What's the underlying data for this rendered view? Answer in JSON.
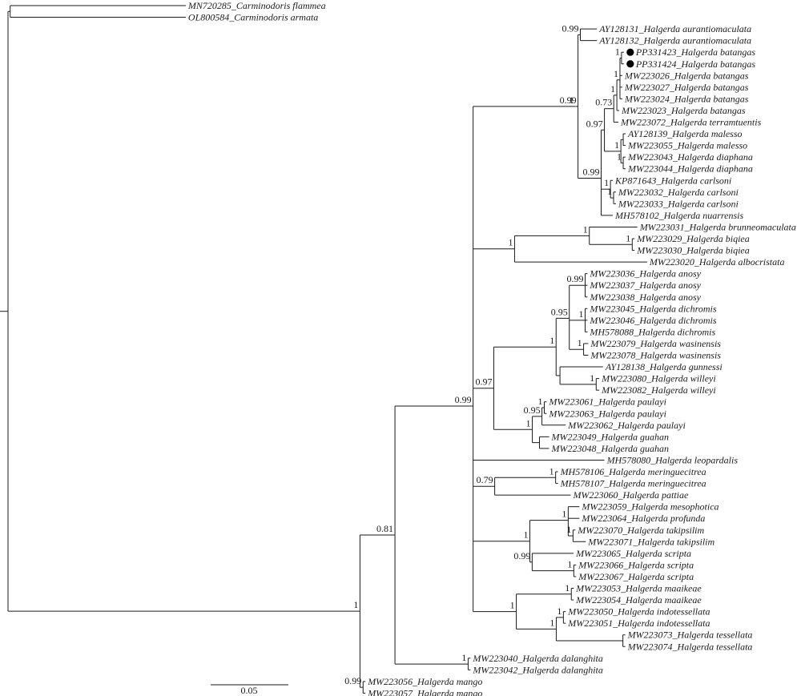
{
  "tree": {
    "scale_bar": {
      "label": "0.05",
      "value": 0.05
    },
    "nodes": [
      {
        "id": "root",
        "parent": null,
        "bl": 0
      },
      {
        "id": "n_carm",
        "parent": "root",
        "bl": 0.0014
      },
      {
        "id": "t1",
        "parent": "n_carm",
        "bl": 0.113,
        "label": "MN720285_Carminodoris flammea"
      },
      {
        "id": "t2",
        "parent": "n_carm",
        "bl": 0.113,
        "label": "OL800584_Carminodoris armata"
      },
      {
        "id": "n_halg",
        "parent": "root",
        "bl": 0.2265,
        "support": "1"
      },
      {
        "id": "n_mango",
        "parent": "n_halg",
        "bl": 0.002,
        "support": "0.99"
      },
      {
        "id": "t57",
        "parent": "n_mango",
        "bl": 0.0015,
        "label": "MW223056_Halgerda mango"
      },
      {
        "id": "t58",
        "parent": "n_mango",
        "bl": 0.0015,
        "label": "MW223057_Halgerda mango"
      },
      {
        "id": "n081",
        "parent": "n_halg",
        "bl": 0.0225,
        "support": "0.81"
      },
      {
        "id": "n_dal",
        "parent": "n081",
        "bl": 0.0471,
        "support": "1"
      },
      {
        "id": "t55",
        "parent": "n_dal",
        "bl": 0.0015,
        "label": "MW223040_Halgerda dalanghita"
      },
      {
        "id": "t56",
        "parent": "n_dal",
        "bl": 0.0015,
        "label": "MW223042_Halgerda dalanghita"
      },
      {
        "id": "n099",
        "parent": "n081",
        "bl": 0.0503,
        "support": "0.99"
      },
      {
        "id": "n1a",
        "parent": "n099",
        "bl": 0.066,
        "support": "1"
      },
      {
        "id": "n099b",
        "parent": "n1a",
        "bl": 0.0015,
        "support": "0.99"
      },
      {
        "id": "n_au",
        "parent": "n099b",
        "bl": 0.0015,
        "support": "0.99"
      },
      {
        "id": "t3",
        "parent": "n_au",
        "bl": 0.0107,
        "label": "AY128131_Halgerda aurantiomaculata"
      },
      {
        "id": "t4",
        "parent": "n_au",
        "bl": 0.0107,
        "label": "AY128132_Halgerda aurantiomaculata"
      },
      {
        "id": "n099c",
        "parent": "n099b",
        "bl": 0.0149,
        "support": "0.99"
      },
      {
        "id": "n097a",
        "parent": "n099c",
        "bl": 0.0021,
        "support": "0.97"
      },
      {
        "id": "n073",
        "parent": "n097a",
        "bl": 0.006,
        "support": "0.73"
      },
      {
        "id": "n_bat",
        "parent": "n073",
        "bl": 0.002,
        "support": "1"
      },
      {
        "id": "n_bat2",
        "parent": "n_bat",
        "bl": 0.002,
        "support": "1"
      },
      {
        "id": "n_pp",
        "parent": "n_bat2",
        "bl": 0.001,
        "support": "1"
      },
      {
        "id": "t5",
        "parent": "n_pp",
        "bl": 0.0015,
        "label": "PP331423_Halgerda batangas",
        "marker": "filled-circle"
      },
      {
        "id": "t6",
        "parent": "n_pp",
        "bl": 0.0015,
        "label": "PP331424_Halgerda batangas",
        "marker": "filled-circle"
      },
      {
        "id": "t7",
        "parent": "n_bat2",
        "bl": 0.0015,
        "label": "MW223026_Halgerda batangas"
      },
      {
        "id": "t8",
        "parent": "n_bat2",
        "bl": 0.0015,
        "label": "MW223027_Halgerda batangas"
      },
      {
        "id": "t9",
        "parent": "n_bat2",
        "bl": 0.0015,
        "label": "MW223024_Halgerda batangas"
      },
      {
        "id": "t10",
        "parent": "n_bat",
        "bl": 0.0015,
        "label": "MW223023_Halgerda batangas"
      },
      {
        "id": "t11",
        "parent": "n073",
        "bl": 0.003,
        "label": "MW223072_Halgerda terramtuentis"
      },
      {
        "id": "n_md",
        "parent": "n097a",
        "bl": 0.0106,
        "support": "1"
      },
      {
        "id": "n_mal",
        "parent": "n_md",
        "bl": 0.0015
      },
      {
        "id": "t12",
        "parent": "n_mal",
        "bl": 0.0015,
        "label": "AY128139_Halgerda malesso"
      },
      {
        "id": "t13",
        "parent": "n_mal",
        "bl": 0.0015,
        "label": "MW223055_Halgerda malesso"
      },
      {
        "id": "n_dia",
        "parent": "n_md",
        "bl": 0.0015,
        "support": "1"
      },
      {
        "id": "t14",
        "parent": "n_dia",
        "bl": 0.0015,
        "label": "MW223043_Halgerda diaphana"
      },
      {
        "id": "t15",
        "parent": "n_dia",
        "bl": 0.0015,
        "label": "MW223044_Halgerda diaphana"
      },
      {
        "id": "n_car",
        "parent": "n099c",
        "bl": 0.006,
        "support": "1"
      },
      {
        "id": "t16",
        "parent": "n_car",
        "bl": 0.0015,
        "label": "KP871643_Halgerda carlsoni"
      },
      {
        "id": "n_car2",
        "parent": "n_car",
        "bl": 0.002,
        "support": "1"
      },
      {
        "id": "t17",
        "parent": "n_car2",
        "bl": 0.0015,
        "label": "MW223032_Halgerda carlsoni"
      },
      {
        "id": "t18",
        "parent": "n_car2",
        "bl": 0.0015,
        "label": "MW223033_Halgerda carlsoni"
      },
      {
        "id": "t19",
        "parent": "n099c",
        "bl": 0.0075,
        "label": "MH578102_Halgerda nuarrensis"
      },
      {
        "id": "n1b",
        "parent": "n099",
        "bl": 0.0267,
        "support": "1"
      },
      {
        "id": "n1c",
        "parent": "n1b",
        "bl": 0.0481,
        "support": "1"
      },
      {
        "id": "t20",
        "parent": "n1c",
        "bl": 0.0309,
        "label": "MW223031_Halgerda brunneomaculata"
      },
      {
        "id": "n_biq",
        "parent": "n1c",
        "bl": 0.0276,
        "support": "1"
      },
      {
        "id": "t21",
        "parent": "n_biq",
        "bl": 0.0015,
        "label": "MW223029_Halgerda biqiea"
      },
      {
        "id": "t22",
        "parent": "n_biq",
        "bl": 0.0015,
        "label": "MW223030_Halgerda biqiea"
      },
      {
        "id": "t23",
        "parent": "n1b",
        "bl": 0.0853,
        "label": "MW223020_Halgerda albocristata"
      },
      {
        "id": "n097b",
        "parent": "n099",
        "bl": 0.0133,
        "support": "0.97"
      },
      {
        "id": "n1d",
        "parent": "n097b",
        "bl": 0.0401,
        "support": "1"
      },
      {
        "id": "n095a",
        "parent": "n1d",
        "bl": 0.0085,
        "support": "0.95"
      },
      {
        "id": "n099d",
        "parent": "n095a",
        "bl": 0.0102,
        "support": "0.99"
      },
      {
        "id": "t24",
        "parent": "n099d",
        "bl": 0.0015,
        "label": "MW223036_Halgerda anosy"
      },
      {
        "id": "t25",
        "parent": "n099d",
        "bl": 0.0015,
        "label": "MW223037_Halgerda anosy"
      },
      {
        "id": "t26",
        "parent": "n099d",
        "bl": 0.0015,
        "label": "MW223038_Halgerda anosy"
      },
      {
        "id": "n_dic",
        "parent": "n095a",
        "bl": 0.0102,
        "support": "1"
      },
      {
        "id": "t27",
        "parent": "n_dic",
        "bl": 0.0015,
        "label": "MW223045_Halgerda dichromis"
      },
      {
        "id": "t28",
        "parent": "n_dic",
        "bl": 0.0015,
        "label": "MW223046_Halgerda dichromis"
      },
      {
        "id": "t29",
        "parent": "n_dic",
        "bl": 0.0015,
        "label": "MH578088_Halgerda dichromis"
      },
      {
        "id": "n_was",
        "parent": "n095a",
        "bl": 0.0092,
        "support": "1"
      },
      {
        "id": "t30",
        "parent": "n_was",
        "bl": 0.003,
        "label": "MW223079_Halgerda wasinensis"
      },
      {
        "id": "t31",
        "parent": "n_was",
        "bl": 0.003,
        "label": "MW223078_Halgerda wasinensis"
      },
      {
        "id": "n_gw",
        "parent": "n1d",
        "bl": 0.0025
      },
      {
        "id": "t32",
        "parent": "n_gw",
        "bl": 0.0277,
        "label": "AY128138_Halgerda gunnessi"
      },
      {
        "id": "n_wil",
        "parent": "n_gw",
        "bl": 0.0233,
        "support": "1"
      },
      {
        "id": "t33",
        "parent": "n_wil",
        "bl": 0.002,
        "label": "MW223080_Halgerda willeyi"
      },
      {
        "id": "t34",
        "parent": "n_wil",
        "bl": 0.002,
        "label": "MW223082_Halgerda willeyi"
      },
      {
        "id": "n1e",
        "parent": "n097b",
        "bl": 0.0248,
        "support": "1"
      },
      {
        "id": "n095b",
        "parent": "n1e",
        "bl": 0.0062,
        "support": "0.95"
      },
      {
        "id": "n_pau",
        "parent": "n095b",
        "bl": 0.0015,
        "support": "1"
      },
      {
        "id": "t35",
        "parent": "n_pau",
        "bl": 0.0015,
        "label": "MW223061_Halgerda paulayi"
      },
      {
        "id": "t36",
        "parent": "n_pau",
        "bl": 0.0015,
        "label": "MW223063_Halgerda paulayi"
      },
      {
        "id": "t37",
        "parent": "n095b",
        "bl": 0.0153,
        "label": "MW223062_Halgerda paulayi"
      },
      {
        "id": "n_gua",
        "parent": "n1e",
        "bl": 0.0046
      },
      {
        "id": "t38",
        "parent": "n_gua",
        "bl": 0.0062,
        "label": "MW223049_Halgerda guahan"
      },
      {
        "id": "t39",
        "parent": "n_gua",
        "bl": 0.0062,
        "label": "MW223048_Halgerda guahan"
      },
      {
        "id": "t40",
        "parent": "n099",
        "bl": 0.0845,
        "label": "MH578080_Halgerda leopardalis"
      },
      {
        "id": "n079",
        "parent": "n099",
        "bl": 0.0139,
        "support": "0.79"
      },
      {
        "id": "n_mer",
        "parent": "n079",
        "bl": 0.0392,
        "support": "1"
      },
      {
        "id": "t41",
        "parent": "n_mer",
        "bl": 0.0015,
        "label": "MH578106_Halgerda meringuecitrea"
      },
      {
        "id": "t42",
        "parent": "n_mer",
        "bl": 0.0015,
        "label": "MH578107_Halgerda meringuecitrea"
      },
      {
        "id": "t43",
        "parent": "n079",
        "bl": 0.0489,
        "label": "MW223060_Halgerda pattiae"
      },
      {
        "id": "n1f",
        "parent": "n099",
        "bl": 0.0365,
        "support": "1"
      },
      {
        "id": "n_mp",
        "parent": "n1f",
        "bl": 0.0247,
        "support": "1"
      },
      {
        "id": "t44",
        "parent": "n_mp",
        "bl": 0.0072,
        "label": "MW223059_Halgerda mesophotica"
      },
      {
        "id": "t45",
        "parent": "n_mp",
        "bl": 0.0072,
        "label": "MW223064_Halgerda profunda"
      },
      {
        "id": "n_tak",
        "parent": "n_mp",
        "bl": 0.0031,
        "support": "1"
      },
      {
        "id": "t46",
        "parent": "n_tak",
        "bl": 0.0015,
        "label": "MW223070_Halgerda takipsilim"
      },
      {
        "id": "t47",
        "parent": "n_tak",
        "bl": 0.0082,
        "label": "MW223071_Halgerda takipsilim"
      },
      {
        "id": "n099e",
        "parent": "n1f",
        "bl": 0.0015,
        "support": "0.99"
      },
      {
        "id": "t48",
        "parent": "n099e",
        "bl": 0.0267,
        "label": "MW223065_Halgerda scripta"
      },
      {
        "id": "n_scr",
        "parent": "n099e",
        "bl": 0.0268,
        "support": "1"
      },
      {
        "id": "t49",
        "parent": "n_scr",
        "bl": 0.0015,
        "label": "MW223066_Halgerda scripta"
      },
      {
        "id": "t50",
        "parent": "n_scr",
        "bl": 0.0015,
        "label": "MW223067_Halgerda scripta"
      },
      {
        "id": "n1g",
        "parent": "n099",
        "bl": 0.0278,
        "support": "1"
      },
      {
        "id": "n_maa",
        "parent": "n1g",
        "bl": 0.0354,
        "support": "1"
      },
      {
        "id": "t51",
        "parent": "n_maa",
        "bl": 0.0015,
        "label": "MW223053_Halgerda maaikeae"
      },
      {
        "id": "t52",
        "parent": "n_maa",
        "bl": 0.0015,
        "label": "MW223054_Halgerda maaikeae"
      },
      {
        "id": "n_it",
        "parent": "n1g",
        "bl": 0.0257,
        "support": "1"
      },
      {
        "id": "n_ind",
        "parent": "n_it",
        "bl": 0.0046,
        "support": "1"
      },
      {
        "id": "t53",
        "parent": "n_ind",
        "bl": 0.0015,
        "label": "MW223050_Halgerda indotessellata"
      },
      {
        "id": "t54",
        "parent": "n_ind",
        "bl": 0.0015,
        "label": "MW223051_Halgerda indotessellata"
      },
      {
        "id": "n_tes",
        "parent": "n_it",
        "bl": 0.0429
      },
      {
        "id": "t59",
        "parent": "n_tes",
        "bl": 0.0015,
        "label": "MW223073_Halgerda tessellata"
      },
      {
        "id": "t60",
        "parent": "n_tes",
        "bl": 0.0015,
        "label": "MW223074_Halgerda tessellata"
      }
    ]
  }
}
